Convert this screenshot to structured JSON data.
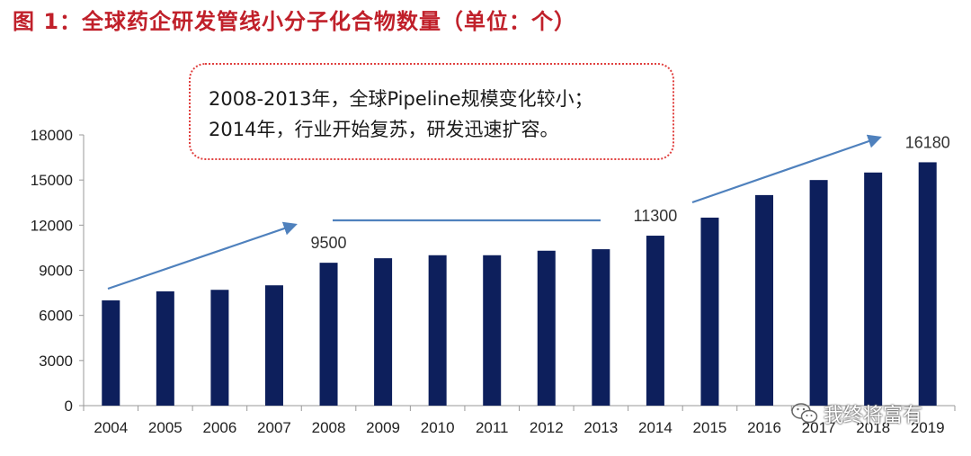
{
  "title": "图 1：全球药企研发管线小分子化合物数量（单位：个）",
  "callout": {
    "line1": "2008-2013年，全球Pipeline规模变化较小；",
    "line2": "2014年，行业开始复苏，研发迅速扩容。"
  },
  "watermark": {
    "icon": "wechat-icon",
    "text": "我终将富有"
  },
  "colors": {
    "bar": "#0d1f5c",
    "arrow": "#4f81bd",
    "title": "#c0202a",
    "callout_border": "#e0403f"
  },
  "chart_data": {
    "type": "bar",
    "categories": [
      "2004",
      "2005",
      "2006",
      "2007",
      "2008",
      "2009",
      "2010",
      "2011",
      "2012",
      "2013",
      "2014",
      "2015",
      "2016",
      "2017",
      "2018",
      "2019"
    ],
    "values": [
      7000,
      7600,
      7700,
      8000,
      9500,
      9800,
      10000,
      10000,
      10300,
      10400,
      11300,
      12500,
      14000,
      15000,
      15500,
      16180
    ],
    "ylim": [
      0,
      18000
    ],
    "yticks": [
      0,
      3000,
      6000,
      9000,
      12000,
      15000,
      18000
    ],
    "data_labels": [
      {
        "category": "2008",
        "text": "9500"
      },
      {
        "category": "2014",
        "text": "11300"
      },
      {
        "category": "2019",
        "text": "16180"
      }
    ],
    "grid": false,
    "legend": "none"
  }
}
